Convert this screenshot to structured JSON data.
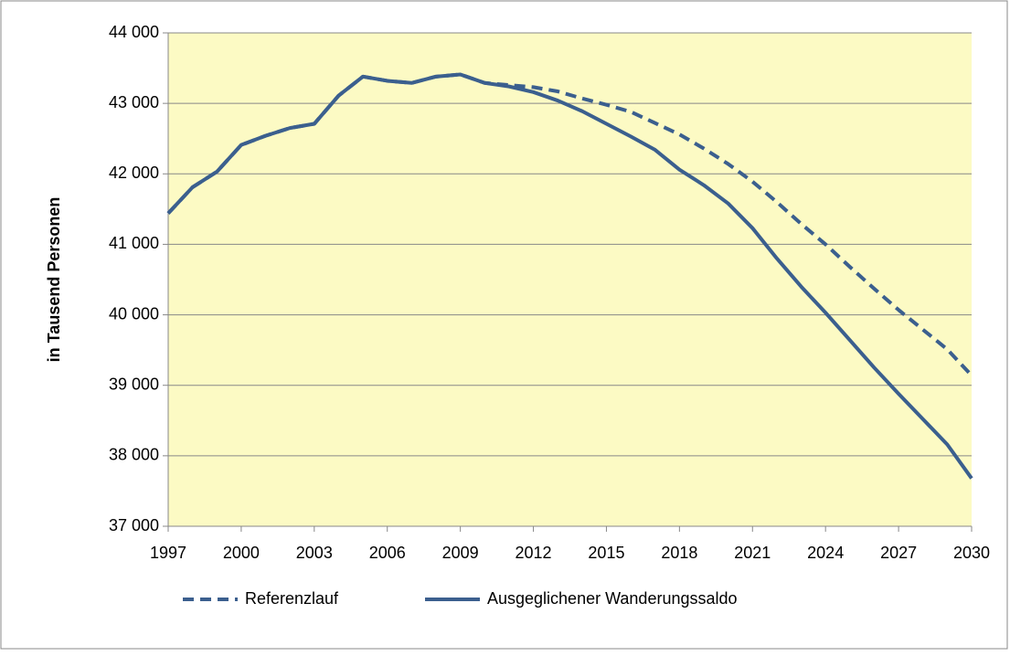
{
  "chart_data": {
    "type": "line",
    "y_label": "in Tausend Personen",
    "x": [
      1997,
      1998,
      1999,
      2000,
      2001,
      2002,
      2003,
      2004,
      2005,
      2006,
      2007,
      2008,
      2009,
      2010,
      2011,
      2012,
      2013,
      2014,
      2015,
      2016,
      2017,
      2018,
      2019,
      2020,
      2021,
      2022,
      2023,
      2024,
      2025,
      2026,
      2027,
      2028,
      2029,
      2030
    ],
    "series": [
      {
        "name": "Referenzlauf",
        "color": "#3b5f8e",
        "dashed": true,
        "values": [
          41440,
          41810,
          42030,
          42410,
          42540,
          42650,
          42710,
          43110,
          43380,
          43320,
          43290,
          43380,
          43410,
          43290,
          43260,
          43230,
          43170,
          43070,
          42980,
          42880,
          42720,
          42560,
          42360,
          42140,
          41890,
          41600,
          41290,
          41000,
          40680,
          40370,
          40070,
          39790,
          39510,
          39140
        ]
      },
      {
        "name": "Ausgeglichener Wanderungssaldo",
        "color": "#3b5f8e",
        "dashed": false,
        "values": [
          41440,
          41810,
          42030,
          42410,
          42540,
          42650,
          42710,
          43110,
          43380,
          43320,
          43290,
          43380,
          43410,
          43290,
          43240,
          43160,
          43040,
          42890,
          42710,
          42530,
          42340,
          42060,
          41840,
          41580,
          41230,
          40800,
          40400,
          40030,
          39640,
          39250,
          38880,
          38520,
          38160,
          37680
        ]
      }
    ],
    "xlim": [
      1997,
      2030
    ],
    "xticks": [
      1997,
      2000,
      2003,
      2006,
      2009,
      2012,
      2015,
      2018,
      2021,
      2024,
      2027,
      2030
    ],
    "ylim": [
      37000,
      44000
    ],
    "yticks": [
      {
        "value": 37000,
        "label": "37 000"
      },
      {
        "value": 38000,
        "label": "38 000"
      },
      {
        "value": 39000,
        "label": "39 000"
      },
      {
        "value": 40000,
        "label": "40 000"
      },
      {
        "value": 41000,
        "label": "41 000"
      },
      {
        "value": 42000,
        "label": "42 000"
      },
      {
        "value": 43000,
        "label": "43 000"
      },
      {
        "value": 44000,
        "label": "44 000"
      }
    ],
    "grid": true,
    "legend": "bottom",
    "plot_background": "#fcfac4"
  }
}
